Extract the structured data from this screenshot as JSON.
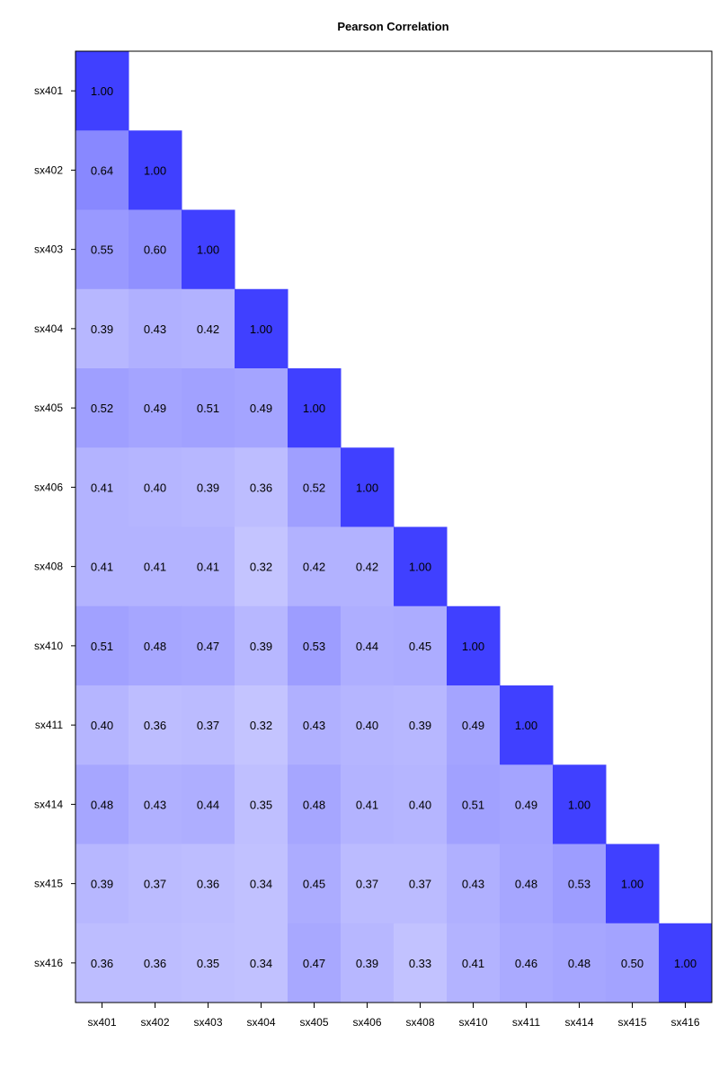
{
  "chart_data": {
    "type": "heatmap",
    "title": "Pearson Correlation",
    "variables": [
      "sx401",
      "sx402",
      "sx403",
      "sx404",
      "sx405",
      "sx406",
      "sx408",
      "sx410",
      "sx411",
      "sx414",
      "sx415",
      "sx416"
    ],
    "matrix": [
      [
        1.0
      ],
      [
        0.64,
        1.0
      ],
      [
        0.55,
        0.6,
        1.0
      ],
      [
        0.39,
        0.43,
        0.42,
        1.0
      ],
      [
        0.52,
        0.49,
        0.51,
        0.49,
        1.0
      ],
      [
        0.41,
        0.4,
        0.39,
        0.36,
        0.52,
        1.0
      ],
      [
        0.41,
        0.41,
        0.41,
        0.32,
        0.42,
        0.42,
        1.0
      ],
      [
        0.51,
        0.48,
        0.47,
        0.39,
        0.53,
        0.44,
        0.45,
        1.0
      ],
      [
        0.4,
        0.36,
        0.37,
        0.32,
        0.43,
        0.4,
        0.39,
        0.49,
        1.0
      ],
      [
        0.48,
        0.43,
        0.44,
        0.35,
        0.48,
        0.41,
        0.4,
        0.51,
        0.49,
        1.0
      ],
      [
        0.39,
        0.37,
        0.36,
        0.34,
        0.45,
        0.37,
        0.37,
        0.43,
        0.48,
        0.53,
        1.0
      ],
      [
        0.36,
        0.36,
        0.35,
        0.34,
        0.47,
        0.39,
        0.33,
        0.41,
        0.46,
        0.48,
        0.5,
        1.0
      ]
    ],
    "value_format": "2 decimals",
    "triangle": "lower",
    "colors": {
      "high": "#4040ff",
      "low": "#c8c8ff",
      "border": "#000000"
    }
  }
}
